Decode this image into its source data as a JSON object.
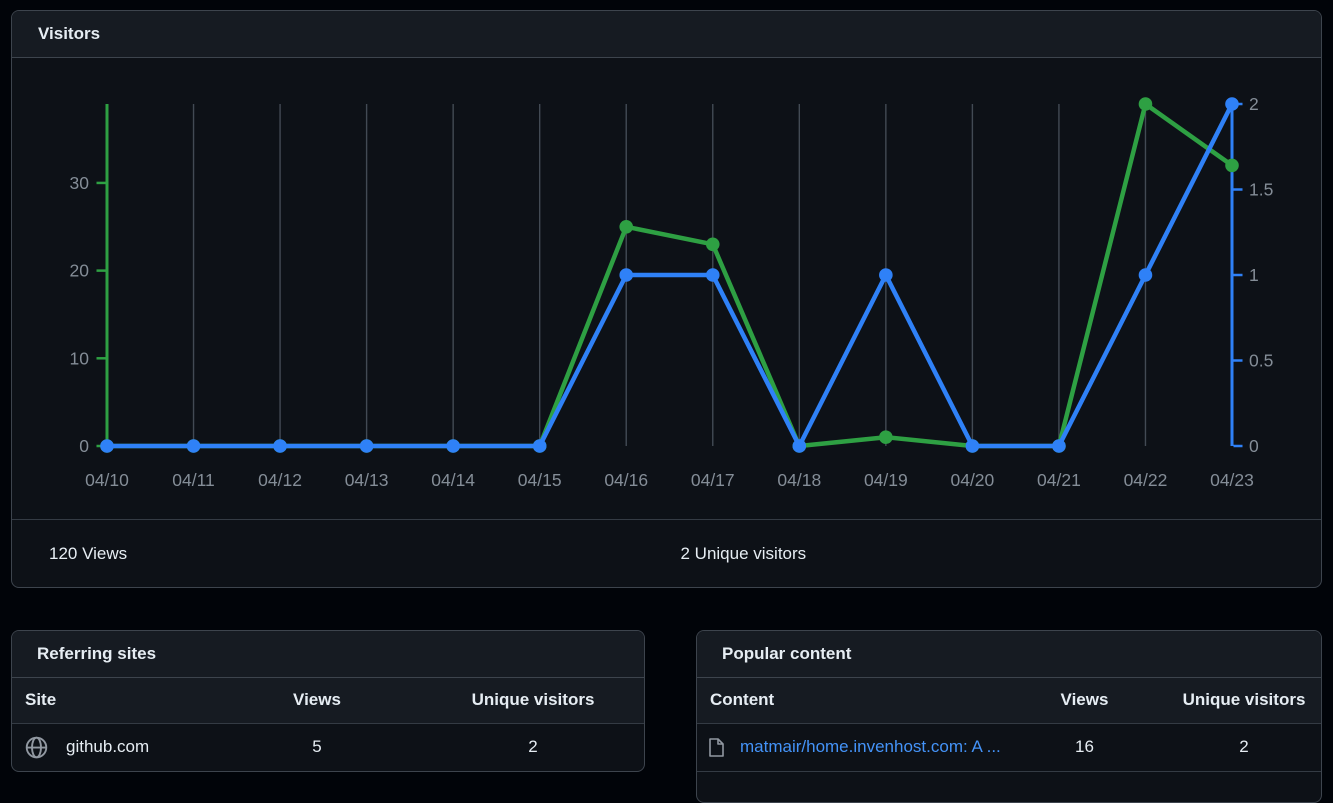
{
  "visitors": {
    "title": "Visitors",
    "summary": {
      "views": "120 Views",
      "unique": "2 Unique visitors"
    }
  },
  "chart_data": {
    "type": "line",
    "title": "Visitors",
    "x_labels": [
      "04/10",
      "04/11",
      "04/12",
      "04/13",
      "04/14",
      "04/15",
      "04/16",
      "04/17",
      "04/18",
      "04/19",
      "04/20",
      "04/21",
      "04/22",
      "04/23"
    ],
    "series": [
      {
        "name": "Views",
        "axis": "left",
        "color": "#2ea043",
        "values": [
          0,
          0,
          0,
          0,
          0,
          0,
          25,
          23,
          0,
          1,
          0,
          0,
          39,
          32
        ]
      },
      {
        "name": "Unique visitors",
        "axis": "right",
        "color": "#2f81f7",
        "values": [
          0,
          0,
          0,
          0,
          0,
          0,
          1,
          1,
          0,
          1,
          0,
          0,
          1,
          2
        ]
      }
    ],
    "left_axis": {
      "label": "Views",
      "min": 0,
      "max": 39,
      "ticks": [
        0,
        10,
        20,
        30
      ],
      "color": "#2ea043"
    },
    "right_axis": {
      "label": "Unique visitors",
      "min": 0,
      "max": 2,
      "ticks": [
        0,
        0.5,
        1,
        1.5,
        2
      ],
      "color": "#2f81f7"
    },
    "grid": "vertical",
    "legend": "none",
    "grid_color": "#424a54",
    "tick_label_color": "#848d97"
  },
  "referring_sites": {
    "title": "Referring sites",
    "columns": [
      "Site",
      "Views",
      "Unique visitors"
    ],
    "rows": [
      {
        "icon": "globe-icon",
        "site": "github.com",
        "views": "5",
        "unique_visitors": "2"
      }
    ]
  },
  "popular_content": {
    "title": "Popular content",
    "columns": [
      "Content",
      "Views",
      "Unique visitors"
    ],
    "rows": [
      {
        "icon": "file-icon",
        "content": "matmair/home.invenhost.com: A ...",
        "views": "16",
        "unique_visitors": "2",
        "link_color": "#4493f8"
      }
    ]
  }
}
